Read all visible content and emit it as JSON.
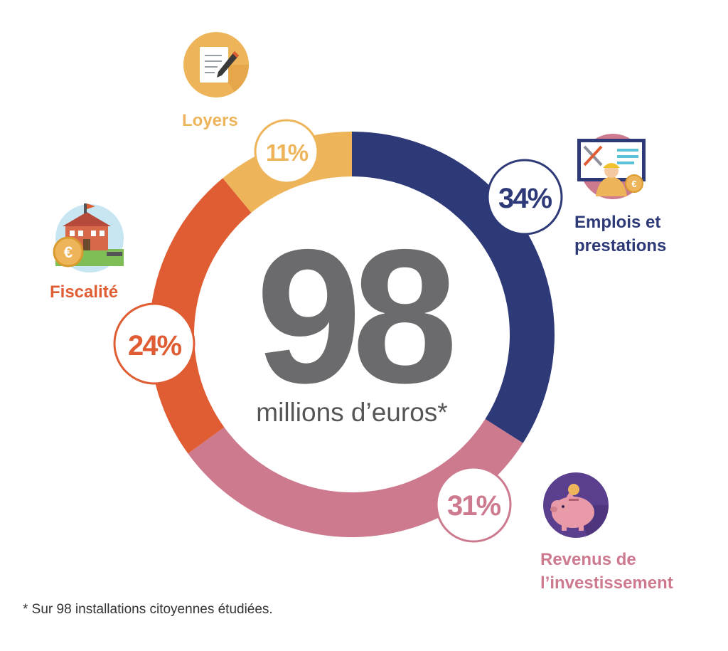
{
  "chart_data": {
    "type": "pie",
    "center_value": "98",
    "center_unit": "millions d’euros*",
    "slices": [
      {
        "label": "Emplois et\nprestations",
        "label_lines": [
          "Emplois et",
          "prestations"
        ],
        "percent_label": "34%",
        "value": 34,
        "color": "#2e3a78",
        "icon": "computer-worker-icon"
      },
      {
        "label": "Revenus de\nl’investissement",
        "label_lines": [
          "Revenus de",
          "l’investissement"
        ],
        "percent_label": "31%",
        "value": 31,
        "color": "#cd7a8f",
        "icon": "piggy-bank-icon"
      },
      {
        "label": "Fiscalité",
        "label_lines": [
          "Fiscalité"
        ],
        "percent_label": "24%",
        "value": 24,
        "color": "#e05d33",
        "icon": "town-hall-coin-icon"
      },
      {
        "label": "Loyers",
        "label_lines": [
          "Loyers"
        ],
        "percent_label": "11%",
        "value": 11,
        "color": "#eeb45a",
        "icon": "document-pen-icon"
      }
    ],
    "footnote": "* Sur 98 installations citoyennes étudiées."
  },
  "colors": {
    "center_text": "#6b6b6e",
    "emplois": "#2e3a78",
    "revenus": "#cd7a8f",
    "fiscalite": "#e05d33",
    "loyers": "#eeb45a"
  }
}
